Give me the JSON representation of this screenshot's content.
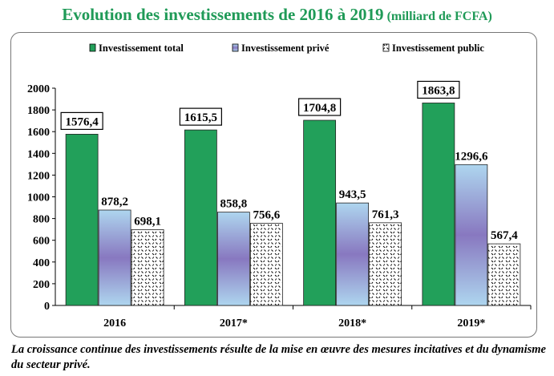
{
  "title": "Evolution des investissements de 2016 à 2019",
  "title_unit": "(milliard de FCFA)",
  "caption": "La croissance continue des investissements résulte de la mise en œuvre des mesures incitatives et du dynamisme du secteur privé.",
  "colors": {
    "title": "#1f9a57",
    "total": "#22a05a",
    "prive_top": "#aed6ef",
    "prive_mid": "#8878c0",
    "public_pattern": "#000000"
  },
  "chart_data": {
    "type": "bar",
    "categories": [
      "2016",
      "2017*",
      "2018*",
      "2019*"
    ],
    "series": [
      {
        "name": "Investissement total",
        "values": [
          1576.4,
          1615.5,
          1704.8,
          1863.8
        ],
        "labels": [
          "1576,4",
          "1615,5",
          "1704,8",
          "1863,8"
        ]
      },
      {
        "name": "Investissement privé",
        "values": [
          878.2,
          858.8,
          943.5,
          1296.6
        ],
        "labels": [
          "878,2",
          "858,8",
          "943,5",
          "1296,6"
        ]
      },
      {
        "name": "Investissement public",
        "values": [
          698.1,
          756.6,
          761.3,
          567.4
        ],
        "labels": [
          "698,1",
          "756,6",
          "761,3",
          "567,4"
        ]
      }
    ],
    "ylim": [
      0,
      2000
    ],
    "yticks": [
      "0",
      "200",
      "400",
      "600",
      "800",
      "1000",
      "1200",
      "1400",
      "1600",
      "1800",
      "2000"
    ],
    "legend_position": "top",
    "grid": false
  }
}
